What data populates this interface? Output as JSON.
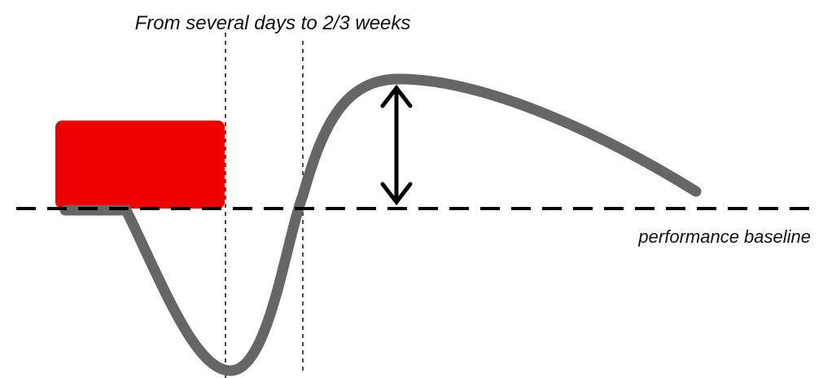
{
  "annotation": "From several days to 2/3 weeks",
  "baseline_label": "performance baseline"
}
